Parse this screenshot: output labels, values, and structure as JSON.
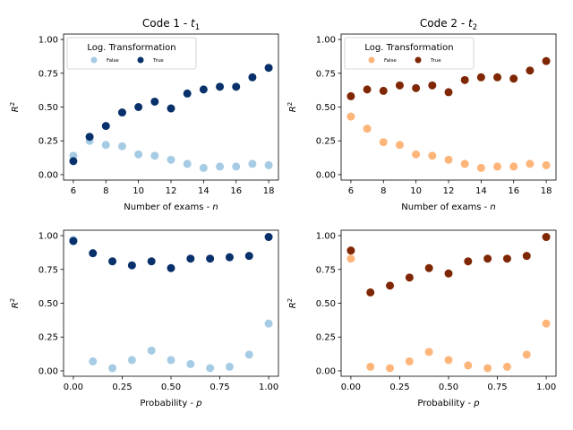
{
  "colors": {
    "t1_false": "#a6cbe4",
    "t1_true": "#08306b",
    "t2_false": "#fdb57a",
    "t2_true": "#7f2704"
  },
  "chart_data": [
    {
      "type": "scatter",
      "title": {
        "main": "Code 1 - ",
        "var": "t",
        "sub": "1"
      },
      "xlabel": {
        "main": "Number of exams - ",
        "var": "n"
      },
      "ylabel": {
        "var": "R",
        "sup": "2"
      },
      "xlim": [
        5.4,
        18.6
      ],
      "ylim": [
        -0.04,
        1.04
      ],
      "xticks": [
        6,
        8,
        10,
        12,
        14,
        16,
        18
      ],
      "yticks": [
        0.0,
        0.25,
        0.5,
        0.75,
        1.0
      ],
      "ytick_labels": [
        "0.00",
        "0.25",
        "0.50",
        "0.75",
        "1.00"
      ],
      "legend": {
        "title": "Log. Transformation",
        "placement": "upper-left"
      },
      "series": [
        {
          "name": "False",
          "color_key": "t1_false",
          "x": [
            6,
            7,
            8,
            9,
            10,
            11,
            12,
            13,
            14,
            15,
            16,
            17,
            18
          ],
          "y": [
            0.14,
            0.25,
            0.22,
            0.21,
            0.15,
            0.14,
            0.11,
            0.08,
            0.05,
            0.06,
            0.06,
            0.08,
            0.07
          ]
        },
        {
          "name": "True",
          "color_key": "t1_true",
          "x": [
            6,
            7,
            8,
            9,
            10,
            11,
            12,
            13,
            14,
            15,
            16,
            17,
            18
          ],
          "y": [
            0.1,
            0.28,
            0.36,
            0.46,
            0.5,
            0.54,
            0.49,
            0.6,
            0.63,
            0.65,
            0.65,
            0.72,
            0.79
          ]
        }
      ]
    },
    {
      "type": "scatter",
      "title": {
        "main": "Code 2 - ",
        "var": "t",
        "sub": "2"
      },
      "xlabel": {
        "main": "Number of exams - ",
        "var": "n"
      },
      "ylabel": {
        "var": "R",
        "sup": "2"
      },
      "xlim": [
        5.4,
        18.6
      ],
      "ylim": [
        -0.04,
        1.04
      ],
      "xticks": [
        6,
        8,
        10,
        12,
        14,
        16,
        18
      ],
      "yticks": [
        0.0,
        0.25,
        0.5,
        0.75,
        1.0
      ],
      "ytick_labels": [
        "0.00",
        "0.25",
        "0.50",
        "0.75",
        "1.00"
      ],
      "legend": {
        "title": "Log. Transformation",
        "placement": "upper-left"
      },
      "series": [
        {
          "name": "False",
          "color_key": "t2_false",
          "x": [
            6,
            7,
            8,
            9,
            10,
            11,
            12,
            13,
            14,
            15,
            16,
            17,
            18
          ],
          "y": [
            0.43,
            0.34,
            0.24,
            0.22,
            0.15,
            0.14,
            0.11,
            0.08,
            0.05,
            0.06,
            0.06,
            0.08,
            0.07
          ]
        },
        {
          "name": "True",
          "color_key": "t2_true",
          "x": [
            6,
            7,
            8,
            9,
            10,
            11,
            12,
            13,
            14,
            15,
            16,
            17,
            18
          ],
          "y": [
            0.58,
            0.63,
            0.62,
            0.66,
            0.64,
            0.66,
            0.61,
            0.7,
            0.72,
            0.72,
            0.71,
            0.77,
            0.84
          ]
        }
      ]
    },
    {
      "type": "scatter",
      "title": null,
      "xlabel": {
        "main": "Probability - ",
        "var": "p"
      },
      "ylabel": {
        "var": "R",
        "sup": "2"
      },
      "xlim": [
        -0.05,
        1.05
      ],
      "ylim": [
        -0.04,
        1.04
      ],
      "xticks": [
        0.0,
        0.25,
        0.5,
        0.75,
        1.0
      ],
      "xtick_labels": [
        "0.00",
        "0.25",
        "0.50",
        "0.75",
        "1.00"
      ],
      "yticks": [
        0.0,
        0.25,
        0.5,
        0.75,
        1.0
      ],
      "ytick_labels": [
        "0.00",
        "0.25",
        "0.50",
        "0.75",
        "1.00"
      ],
      "legend": null,
      "series": [
        {
          "name": "False",
          "color_key": "t1_false",
          "x": [
            0.0,
            0.1,
            0.2,
            0.3,
            0.4,
            0.5,
            0.6,
            0.7,
            0.8,
            0.9,
            1.0
          ],
          "y": [
            0.97,
            0.07,
            0.02,
            0.08,
            0.15,
            0.08,
            0.05,
            0.02,
            0.03,
            0.12,
            0.35
          ]
        },
        {
          "name": "True",
          "color_key": "t1_true",
          "x": [
            0.0,
            0.1,
            0.2,
            0.3,
            0.4,
            0.5,
            0.6,
            0.7,
            0.8,
            0.9,
            1.0
          ],
          "y": [
            0.96,
            0.87,
            0.81,
            0.78,
            0.81,
            0.76,
            0.83,
            0.83,
            0.84,
            0.85,
            0.99
          ]
        }
      ]
    },
    {
      "type": "scatter",
      "title": null,
      "xlabel": {
        "main": "Probability - ",
        "var": "p"
      },
      "ylabel": {
        "var": "R",
        "sup": "2"
      },
      "xlim": [
        -0.05,
        1.05
      ],
      "ylim": [
        -0.04,
        1.04
      ],
      "xticks": [
        0.0,
        0.25,
        0.5,
        0.75,
        1.0
      ],
      "xtick_labels": [
        "0.00",
        "0.25",
        "0.50",
        "0.75",
        "1.00"
      ],
      "yticks": [
        0.0,
        0.25,
        0.5,
        0.75,
        1.0
      ],
      "ytick_labels": [
        "0.00",
        "0.25",
        "0.50",
        "0.75",
        "1.00"
      ],
      "legend": null,
      "series": [
        {
          "name": "False",
          "color_key": "t2_false",
          "x": [
            0.0,
            0.1,
            0.2,
            0.3,
            0.4,
            0.5,
            0.6,
            0.7,
            0.8,
            0.9,
            1.0
          ],
          "y": [
            0.83,
            0.03,
            0.02,
            0.07,
            0.14,
            0.08,
            0.04,
            0.02,
            0.03,
            0.12,
            0.35
          ]
        },
        {
          "name": "True",
          "color_key": "t2_true",
          "x": [
            0.0,
            0.1,
            0.2,
            0.3,
            0.4,
            0.5,
            0.6,
            0.7,
            0.8,
            0.9,
            1.0
          ],
          "y": [
            0.89,
            0.58,
            0.63,
            0.69,
            0.76,
            0.72,
            0.81,
            0.83,
            0.83,
            0.85,
            0.99
          ]
        }
      ]
    }
  ]
}
